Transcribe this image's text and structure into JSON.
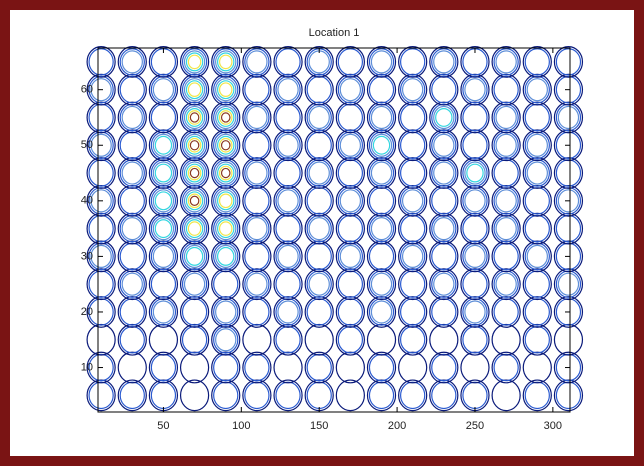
{
  "chart_data": {
    "type": "contour",
    "title": "Location 1",
    "x": [
      10,
      30,
      50,
      70,
      90,
      110,
      130,
      150,
      170,
      190,
      210,
      230,
      250,
      270,
      290,
      310
    ],
    "y": [
      5,
      10,
      15,
      20,
      25,
      30,
      35,
      40,
      45,
      50,
      55,
      60,
      65
    ],
    "z": [
      [
        2,
        2,
        2,
        1,
        2,
        2,
        2,
        2,
        1,
        2,
        2,
        2,
        2,
        1,
        2,
        2
      ],
      [
        2,
        1,
        2,
        1,
        2,
        2,
        1,
        2,
        1,
        2,
        1,
        2,
        1,
        2,
        1,
        2
      ],
      [
        1,
        2,
        1,
        2,
        3,
        1,
        2,
        1,
        2,
        1,
        2,
        1,
        2,
        1,
        2,
        1
      ],
      [
        2,
        2,
        3,
        2,
        3,
        2,
        3,
        2,
        2,
        3,
        2,
        2,
        3,
        2,
        2,
        2
      ],
      [
        2,
        3,
        2,
        3,
        2,
        3,
        2,
        3,
        2,
        3,
        2,
        3,
        2,
        3,
        2,
        3
      ],
      [
        3,
        2,
        3,
        4,
        4,
        2,
        3,
        2,
        3,
        2,
        3,
        2,
        3,
        2,
        3,
        2
      ],
      [
        2,
        3,
        4,
        5,
        5,
        3,
        2,
        3,
        2,
        3,
        2,
        3,
        2,
        3,
        2,
        2
      ],
      [
        3,
        2,
        4,
        6,
        5,
        2,
        3,
        2,
        3,
        2,
        3,
        2,
        3,
        3,
        2,
        3
      ],
      [
        2,
        3,
        4,
        6,
        6,
        3,
        2,
        3,
        2,
        3,
        2,
        3,
        4,
        2,
        3,
        2
      ],
      [
        3,
        2,
        4,
        6,
        6,
        2,
        3,
        2,
        3,
        4,
        2,
        3,
        2,
        3,
        3,
        2
      ],
      [
        2,
        3,
        2,
        6,
        6,
        3,
        2,
        3,
        2,
        3,
        2,
        4,
        2,
        3,
        2,
        3
      ],
      [
        3,
        2,
        3,
        5,
        5,
        2,
        3,
        2,
        3,
        2,
        3,
        2,
        3,
        2,
        3,
        2
      ],
      [
        2,
        3,
        2,
        5,
        5,
        3,
        2,
        3,
        2,
        3,
        2,
        3,
        2,
        3,
        2,
        2
      ]
    ],
    "levels": [
      1,
      2,
      3,
      4,
      5,
      6
    ],
    "level_colors": [
      "#0a1a7a",
      "#2a5ad0",
      "#5f8fd8",
      "#33d6e0",
      "#f0e64a",
      "#8a3a20"
    ],
    "xlim": [
      8,
      311
    ],
    "ylim": [
      2,
      67.5
    ],
    "xticks": [
      50,
      100,
      150,
      200,
      250,
      300
    ],
    "yticks": [
      10,
      20,
      30,
      40,
      50,
      60
    ]
  }
}
